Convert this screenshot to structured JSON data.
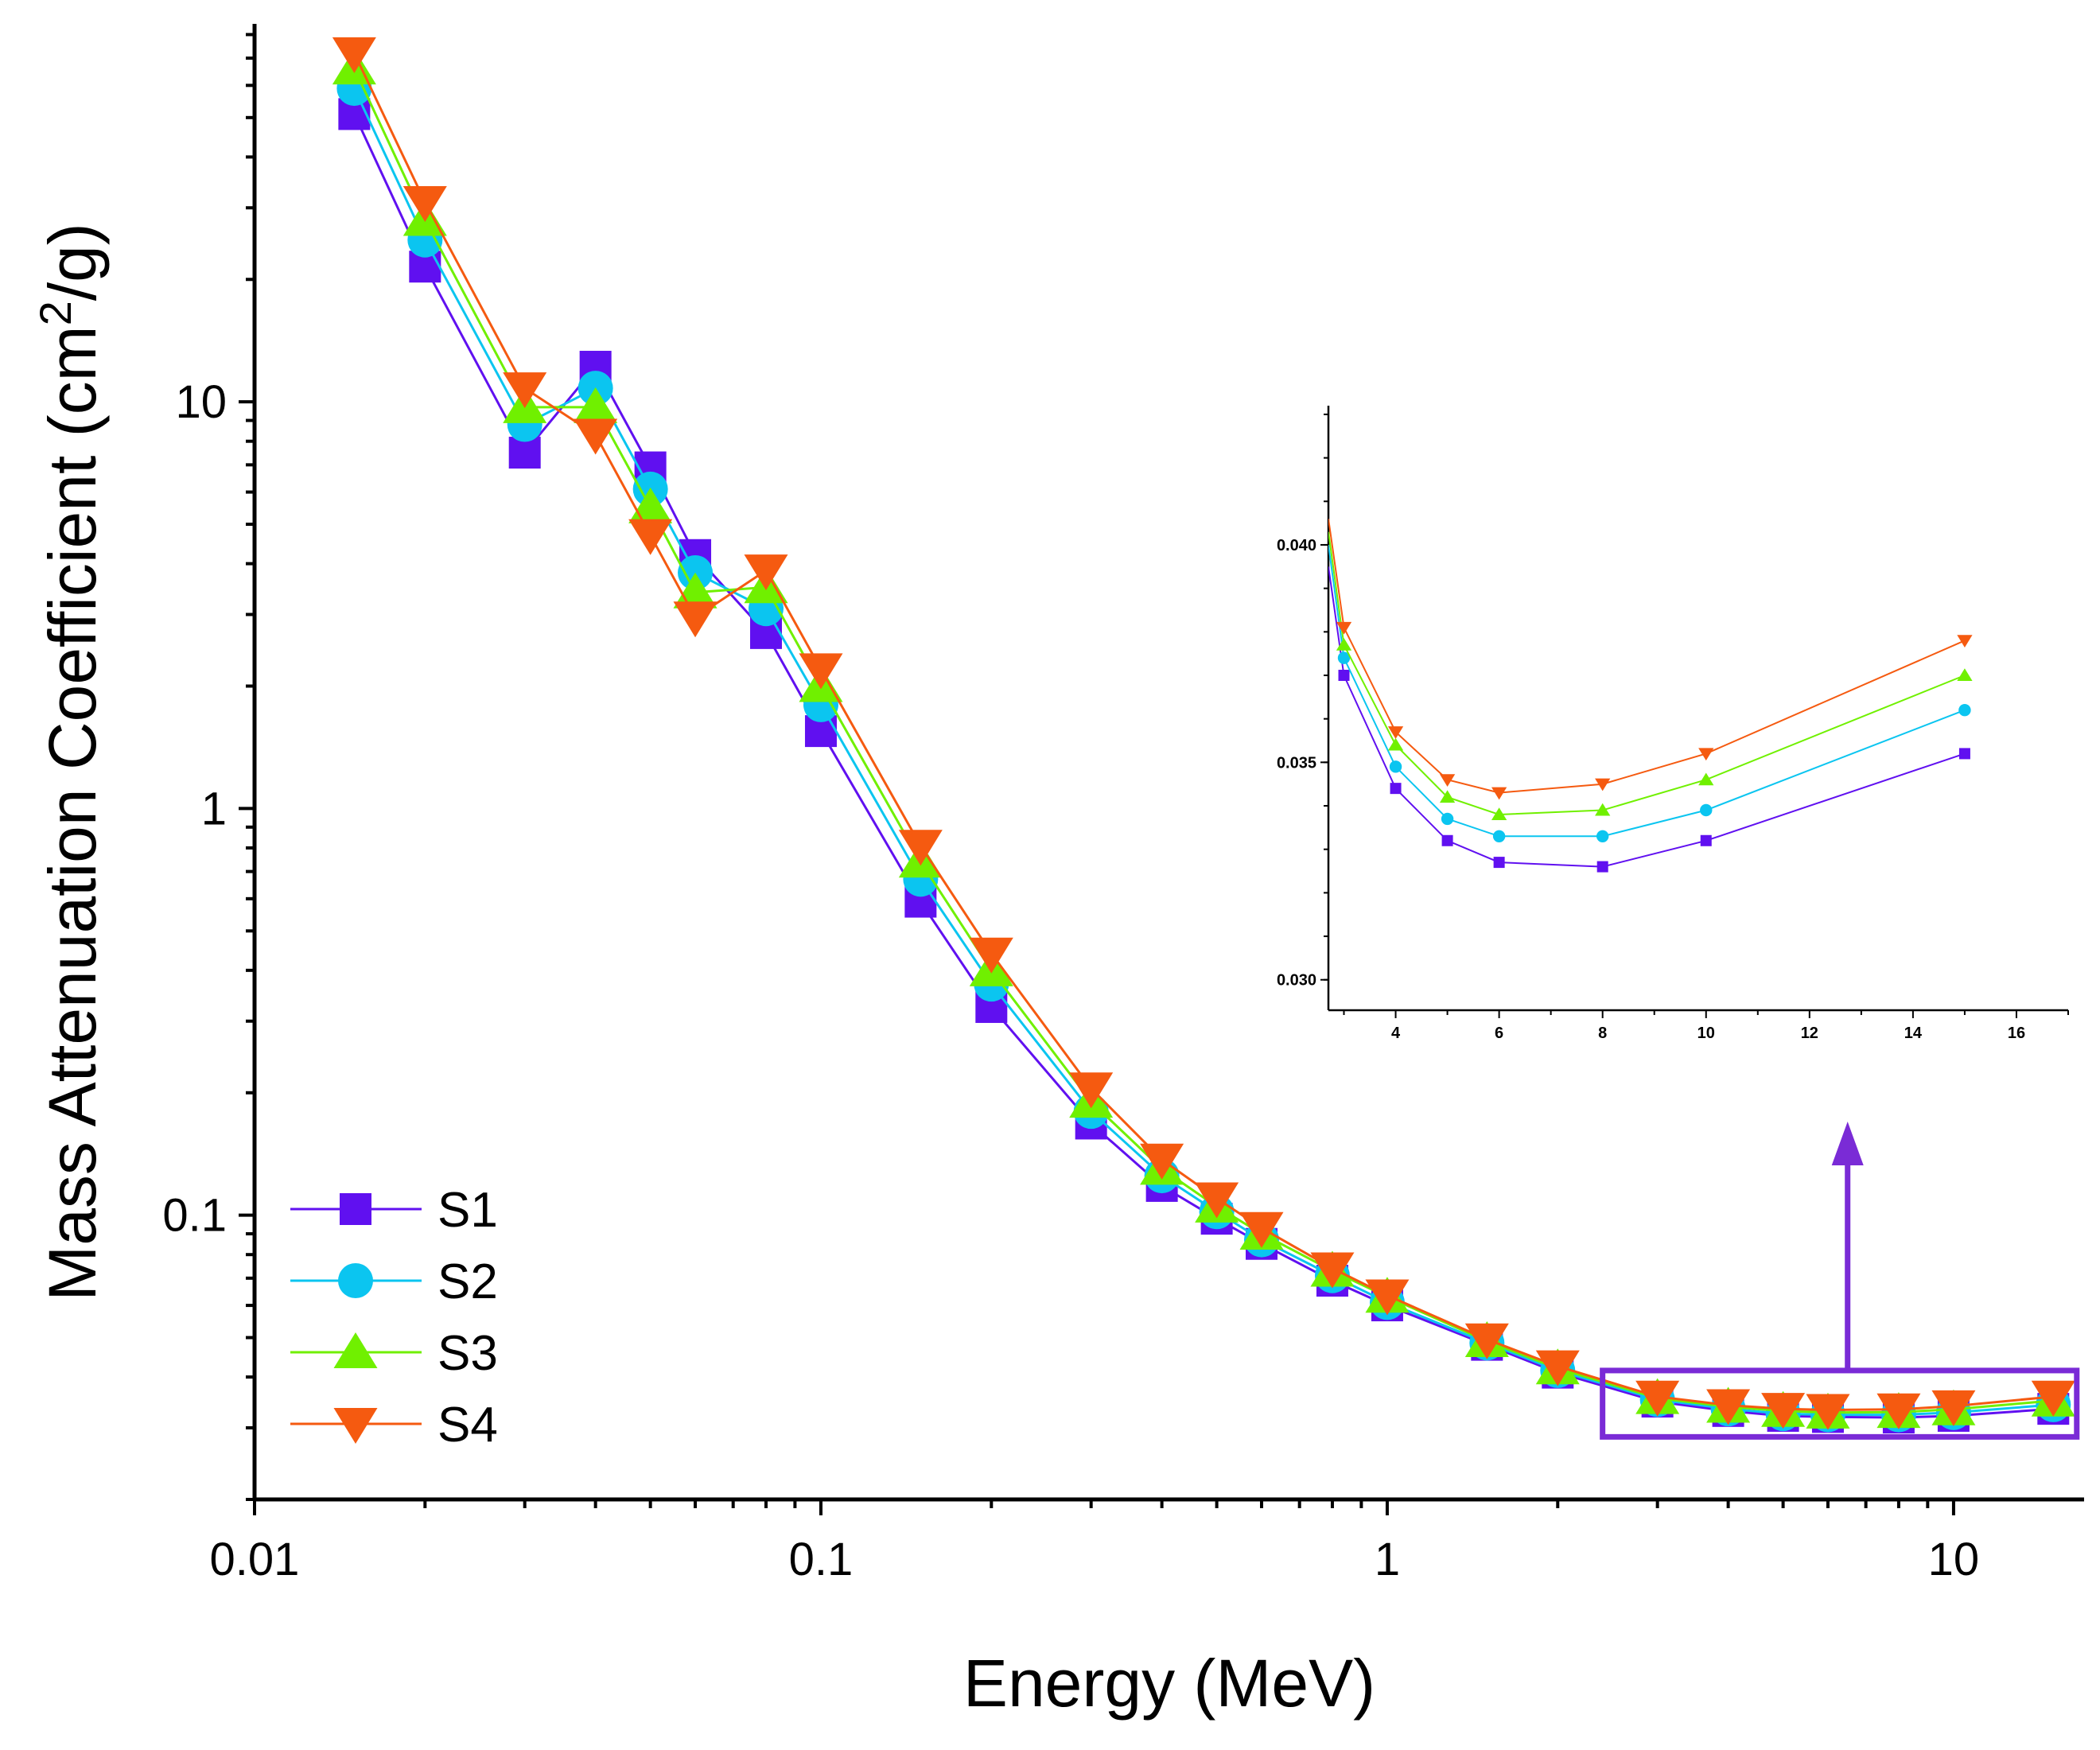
{
  "chart_data": [
    {
      "type": "line",
      "role": "main",
      "xscale": "log",
      "yscale": "log",
      "xlabel": "Energy (MeV)",
      "ylabel_main": "Mass Attenuation Coefficient (cm",
      "ylabel_sup": "2",
      "ylabel_end": "/g)",
      "xlim": [
        0.01,
        17
      ],
      "ylim": [
        0.02,
        85
      ],
      "xticks": [
        {
          "value": 0.01,
          "label": "0.01"
        },
        {
          "value": 0.1,
          "label": "0.1"
        },
        {
          "value": 1,
          "label": "1"
        },
        {
          "value": 10,
          "label": "10"
        }
      ],
      "yticks": [
        {
          "value": 0.1,
          "label": "0.1"
        },
        {
          "value": 1,
          "label": "1"
        },
        {
          "value": 10,
          "label": "10"
        }
      ],
      "legend_position": "bottom-left",
      "x": [
        0.015,
        0.02,
        0.03,
        0.04,
        0.05,
        0.06,
        0.08,
        0.1,
        0.15,
        0.2,
        0.3,
        0.4,
        0.5,
        0.6,
        0.8,
        1,
        1.5,
        2,
        3,
        4,
        5,
        6,
        8,
        10,
        15
      ],
      "series": [
        {
          "name": "S1",
          "marker": "square",
          "color": "#6010F0",
          "values": [
            51,
            21.5,
            7.5,
            12.2,
            6.9,
            4.2,
            2.7,
            1.55,
            0.59,
            0.325,
            0.168,
            0.118,
            0.098,
            0.085,
            0.069,
            0.06,
            0.048,
            0.041,
            0.0348,
            0.033,
            0.0321,
            0.0319,
            0.0318,
            0.0321,
            0.0334
          ]
        },
        {
          "name": "S2",
          "marker": "circle",
          "color": "#0BC5F0",
          "values": [
            59,
            25,
            8.8,
            10.8,
            6.1,
            3.8,
            3.1,
            1.8,
            0.67,
            0.37,
            0.18,
            0.125,
            0.102,
            0.087,
            0.071,
            0.061,
            0.0485,
            0.0415,
            0.0352,
            0.0334,
            0.0325,
            0.0323,
            0.0323,
            0.0327,
            0.0342
          ]
        },
        {
          "name": "S3",
          "marker": "triangle-up",
          "color": "#70F000",
          "values": [
            66,
            28,
            9.7,
            9.7,
            5.5,
            3.4,
            3.5,
            2.0,
            0.74,
            0.4,
            0.19,
            0.13,
            0.105,
            0.09,
            0.073,
            0.063,
            0.049,
            0.042,
            0.0355,
            0.0338,
            0.033,
            0.0327,
            0.0328,
            0.0333,
            0.035
          ]
        },
        {
          "name": "S4",
          "marker": "triangle-down",
          "color": "#F55A10",
          "values": [
            72,
            31,
            10.8,
            8.3,
            4.7,
            2.95,
            3.85,
            2.2,
            0.81,
            0.44,
            0.205,
            0.137,
            0.11,
            0.093,
            0.074,
            0.0635,
            0.0495,
            0.0425,
            0.0358,
            0.0341,
            0.0334,
            0.0332,
            0.0333,
            0.0339,
            0.0358
          ]
        }
      ]
    },
    {
      "type": "line",
      "role": "inset",
      "xscale": "linear",
      "yscale": "linear",
      "xlim": [
        2.7,
        17
      ],
      "ylim": [
        0.0293,
        0.0432
      ],
      "xticks": [
        {
          "value": 4,
          "label": "4"
        },
        {
          "value": 6,
          "label": "6"
        },
        {
          "value": 8,
          "label": "8"
        },
        {
          "value": 10,
          "label": "10"
        },
        {
          "value": 12,
          "label": "12"
        },
        {
          "value": 14,
          "label": "14"
        },
        {
          "value": 16,
          "label": "16"
        }
      ],
      "yticks": [
        {
          "value": 0.03,
          "label": "0.030"
        },
        {
          "value": 0.035,
          "label": "0.035"
        },
        {
          "value": 0.04,
          "label": "0.040"
        }
      ],
      "x": [
        2.7,
        3,
        4,
        5,
        6,
        8,
        10,
        15
      ],
      "series": [
        {
          "name": "S1",
          "color": "#6010F0",
          "values": [
            0.0395,
            0.037,
            0.0344,
            0.0332,
            0.0327,
            0.0326,
            0.0332,
            0.0352
          ]
        },
        {
          "name": "S2",
          "color": "#0BC5F0",
          "values": [
            0.04,
            0.0374,
            0.0349,
            0.0337,
            0.0333,
            0.0333,
            0.0339,
            0.0362
          ]
        },
        {
          "name": "S3",
          "color": "#70F000",
          "values": [
            0.0403,
            0.0377,
            0.0354,
            0.0342,
            0.0338,
            0.0339,
            0.0346,
            0.037
          ]
        },
        {
          "name": "S4",
          "color": "#F55A10",
          "values": [
            0.0406,
            0.0381,
            0.0357,
            0.0346,
            0.0343,
            0.0345,
            0.0352,
            0.0378
          ]
        }
      ]
    }
  ],
  "annotation": {
    "highlight_box_color": "#7A2BD6",
    "arrow_color": "#7A2BD6",
    "highlight_range_x": [
      2.4,
      16.5
    ],
    "highlight_range_y": [
      0.0285,
      0.0415
    ]
  }
}
